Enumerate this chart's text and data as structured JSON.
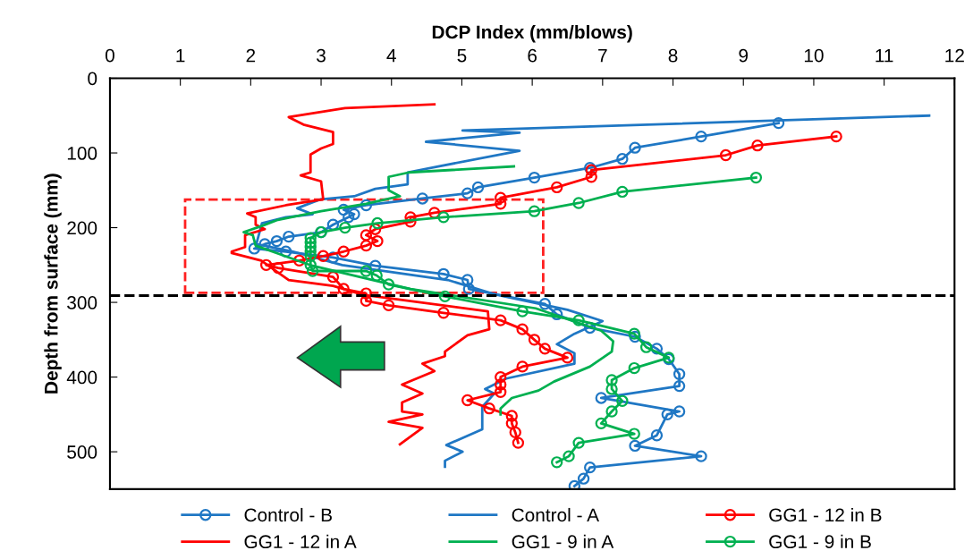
{
  "chart_data": {
    "type": "line",
    "xlabel": "DCP Index (mm/blows)",
    "ylabel": "Depth from surface (mm)",
    "xlim": [
      0,
      12
    ],
    "xticks": [
      0,
      1,
      2,
      3,
      4,
      5,
      6,
      7,
      8,
      9,
      10,
      11,
      12
    ],
    "ylim": [
      550,
      0
    ],
    "yticks": [
      0,
      100,
      200,
      300,
      400,
      500
    ],
    "grid": false,
    "legend": "bottom",
    "ref_lines": [
      {
        "axis": "y",
        "value": 291,
        "color": "#000000",
        "line_style": "dashed"
      }
    ],
    "series": [
      {
        "name": "Control - B",
        "color": "#1f77c4",
        "marker": "circle",
        "x": [
          9.5,
          8.4,
          7.46,
          7.28,
          6.82,
          6.03,
          5.23,
          5.08,
          4.44,
          3.64,
          3.32,
          3.47,
          3.39,
          3.17,
          3.0,
          2.54,
          2.37,
          2.2,
          2.05,
          2.5,
          3.17,
          3.77,
          4.74,
          5.08,
          5.1,
          6.18,
          6.35,
          6.82,
          7.46,
          7.77,
          7.94,
          8.09,
          8.09,
          6.98,
          8.09,
          7.92,
          7.77,
          7.46,
          8.4,
          6.82,
          6.73,
          6.6
        ],
        "values": [
          60,
          78,
          93,
          108,
          120,
          133,
          146,
          154,
          161,
          170,
          176,
          182,
          186,
          196,
          206,
          212,
          218,
          222,
          228,
          232,
          240,
          251,
          262,
          270,
          282,
          302,
          316,
          334,
          346,
          362,
          376,
          396,
          412,
          428,
          446,
          450,
          478,
          492,
          506,
          521,
          536,
          546
        ]
      },
      {
        "name": "Control - A",
        "color": "#1f77c4",
        "marker": "none",
        "x": [
          11.64,
          5.01,
          5.82,
          4.49,
          5.82,
          4.23,
          4.23,
          3.77,
          3.47,
          3.0,
          2.88,
          2.66,
          2.88,
          2.5,
          2.16,
          2.08,
          2.6,
          3.3,
          4.8,
          5.5,
          6.5,
          7.0,
          6.6,
          6.35,
          6.6,
          6.6,
          5.63,
          5.33,
          5.46,
          5.29,
          5.29,
          4.78,
          5.01,
          4.76,
          4.76
        ],
        "values": [
          50,
          70,
          73,
          85,
          97,
          126,
          142,
          148,
          158,
          162,
          166,
          174,
          182,
          186,
          194,
          222,
          232,
          250,
          270,
          290,
          310,
          325,
          342,
          356,
          368,
          382,
          402,
          416,
          422,
          440,
          470,
          491,
          500,
          512,
          520
        ]
      },
      {
        "name": "GG1 - 12 in B",
        "color": "#ff0000",
        "marker": "circle",
        "x": [
          10.32,
          9.2,
          8.75,
          6.84,
          6.84,
          6.35,
          5.55,
          5.55,
          4.61,
          4.27,
          4.27,
          3.77,
          3.64,
          3.8,
          3.64,
          3.32,
          3.03,
          2.69,
          2.22,
          2.39,
          3.17,
          3.32,
          3.64,
          3.64,
          3.96,
          4.74,
          5.55,
          5.86,
          6.03,
          6.18,
          6.5,
          5.86,
          5.55,
          5.55,
          5.55,
          5.08,
          5.39,
          5.71,
          5.71,
          5.76,
          5.8
        ],
        "values": [
          78,
          90,
          103,
          123,
          132,
          146,
          160,
          168,
          180,
          186,
          192,
          202,
          210,
          218,
          224,
          232,
          238,
          244,
          250,
          254,
          266,
          282,
          288,
          298,
          304,
          314,
          324,
          336,
          350,
          362,
          374,
          386,
          400,
          410,
          420,
          431,
          442,
          452,
          462,
          474,
          488
        ]
      },
      {
        "name": "GG1 - 12 in A",
        "color": "#ff0000",
        "marker": "none",
        "x": [
          4.61,
          3.34,
          2.54,
          2.75,
          3.17,
          3.17,
          3.0,
          2.85,
          2.85,
          2.71,
          3.0,
          3.03,
          2.5,
          1.95,
          2.07,
          2.07,
          2.2,
          1.92,
          1.92,
          1.73,
          1.73,
          2.15,
          2.54,
          3.17,
          3.6,
          5.37,
          5.39,
          5.08,
          4.76,
          4.76,
          4.44,
          4.61,
          4.15,
          4.44,
          4.15,
          4.15,
          4.44,
          3.96,
          4.44,
          4.12
        ],
        "values": [
          35,
          40,
          52,
          62,
          72,
          88,
          94,
          102,
          126,
          130,
          138,
          162,
          170,
          181,
          186,
          196,
          202,
          210,
          226,
          232,
          234,
          244,
          270,
          278,
          290,
          312,
          336,
          344,
          366,
          372,
          382,
          392,
          410,
          422,
          434,
          446,
          450,
          460,
          468,
          490
        ]
      },
      {
        "name": "GG1 - 9 in A",
        "color": "#00b050",
        "marker": "none",
        "x": [
          5.74,
          4.25,
          3.96,
          3.96,
          4.12,
          3.64,
          3.0,
          2.37,
          2.15,
          1.9,
          2.03,
          2.07,
          2.37,
          2.84,
          4.27,
          6.05,
          6.98,
          7.15,
          7.13,
          6.82,
          6.31,
          6.09,
          5.71,
          5.55,
          5.55
        ],
        "values": [
          118,
          126,
          132,
          150,
          158,
          168,
          178,
          190,
          198,
          206,
          210,
          224,
          234,
          250,
          282,
          308,
          338,
          352,
          366,
          386,
          406,
          418,
          428,
          442,
          450
        ]
      },
      {
        "name": "GG1 - 9 in B",
        "color": "#00b050",
        "marker": "circle",
        "x": [
          9.18,
          7.28,
          6.66,
          6.03,
          4.74,
          3.8,
          3.34,
          3.0,
          2.85,
          2.85,
          2.85,
          2.85,
          2.85,
          2.85,
          2.88,
          3.64,
          3.79,
          3.96,
          4.76,
          5.86,
          6.66,
          7.45,
          7.62,
          7.94,
          7.45,
          7.13,
          7.13,
          7.28,
          7.13,
          6.98,
          7.45,
          6.66,
          6.52,
          6.35
        ],
        "values": [
          133,
          152,
          167,
          178,
          186,
          194,
          200,
          206,
          214,
          220,
          226,
          232,
          238,
          250,
          258,
          258,
          264,
          276,
          292,
          312,
          324,
          342,
          360,
          374,
          388,
          404,
          416,
          432,
          446,
          462,
          476,
          488,
          506,
          514
        ]
      }
    ]
  }
}
